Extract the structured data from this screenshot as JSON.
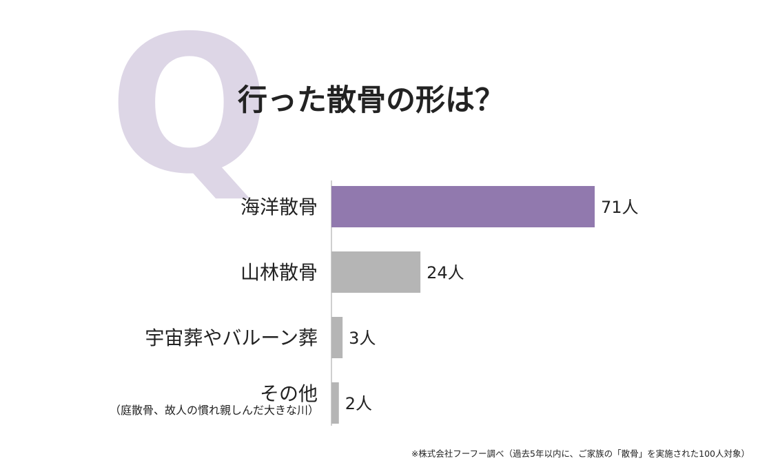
{
  "chart_data": {
    "type": "bar",
    "orientation": "horizontal",
    "title": "行った散骨の形は？",
    "title_mark": "Q",
    "categories": [
      "海洋散骨",
      "山林散骨",
      "宇宙葬やバルーン葬",
      "その他"
    ],
    "sublabels": [
      "",
      "",
      "",
      "（庭散骨、故人の慣れ親しんだ大きな川）"
    ],
    "values": [
      71,
      24,
      3,
      2
    ],
    "value_labels": [
      "71人",
      "24人",
      "3人",
      "2人"
    ],
    "xlim": [
      0,
      71
    ],
    "grid": false,
    "legend": "none",
    "footnote": "※株式会社フーフー調べ（過去5年以内に、ご家族の「散骨」を実施された100人対象）"
  },
  "colors": {
    "highlight": "#9179ae",
    "bar": "#b5b5b5",
    "q_mark": "#ddd6e6",
    "axis": "#cfcfcf",
    "text": "#222222"
  }
}
